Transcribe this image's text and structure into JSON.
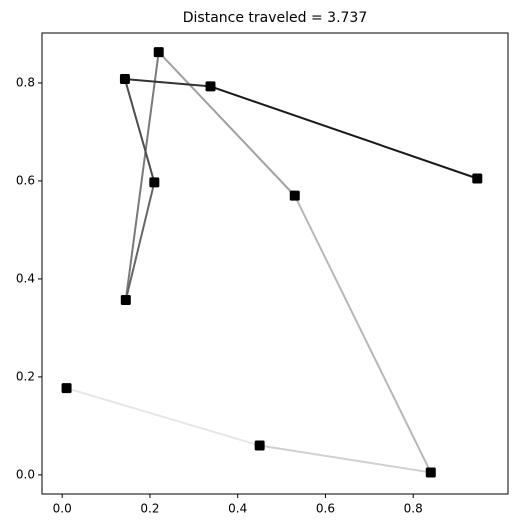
{
  "chart_data": {
    "type": "line",
    "title": "Distance traveled = 3.737",
    "x": [
      0.01,
      0.45,
      0.84,
      0.53,
      0.22,
      0.145,
      0.21,
      0.143,
      0.338,
      0.946
    ],
    "values": [
      0.177,
      0.06,
      0.005,
      0.57,
      0.863,
      0.357,
      0.597,
      0.808,
      0.793,
      0.605
    ],
    "segment_colors": [
      "#e6e6e6",
      "#d0d0d0",
      "#b8b8b8",
      "#a0a0a0",
      "#7a7a7a",
      "#666666",
      "#4d4d4d",
      "#333333",
      "#1a1a1a"
    ],
    "marker_color": "#000000",
    "xlim": [
      -0.046,
      1.016
    ],
    "ylim": [
      -0.039,
      0.902
    ],
    "xticks": [
      {
        "value": 0,
        "label": "0.0"
      },
      0.2,
      0.4,
      0.6,
      0.8
    ],
    "yticks": [
      {
        "value": 0,
        "label": "0.0"
      },
      0.2,
      0.4,
      0.6,
      0.8
    ],
    "grid": false
  }
}
